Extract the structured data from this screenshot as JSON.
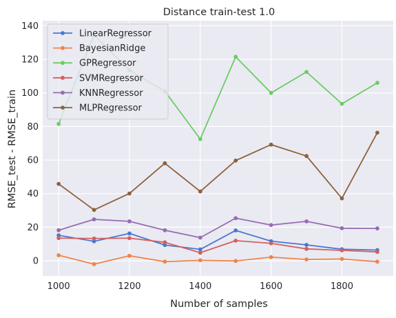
{
  "chart_data": {
    "type": "line",
    "title": "Distance train-test 1.0",
    "xlabel": "Number of samples",
    "ylabel": "RMSE_test - RMSE_train",
    "x": [
      1000,
      1100,
      1200,
      1300,
      1400,
      1500,
      1600,
      1700,
      1800,
      1900
    ],
    "xlim": [
      955,
      1945
    ],
    "ylim": [
      -9,
      143
    ],
    "xticks": [
      1000,
      1200,
      1400,
      1600,
      1800
    ],
    "yticks": [
      0,
      20,
      40,
      60,
      80,
      100,
      120,
      140
    ],
    "grid": true,
    "legend_position": "upper-left",
    "background": "#eaeaf2",
    "series": [
      {
        "name": "LinearRegressor",
        "color": "#4878d0",
        "values": [
          15.2,
          11.6,
          16.3,
          9.4,
          6.8,
          18.1,
          11.7,
          9.5,
          6.9,
          6.4
        ]
      },
      {
        "name": "BayesianRidge",
        "color": "#ee854a",
        "values": [
          3.3,
          -2.0,
          3.0,
          -0.5,
          0.3,
          -0.1,
          2.2,
          0.8,
          1.1,
          -0.5
        ]
      },
      {
        "name": "GPRegressor",
        "color": "#6acc64",
        "values": [
          81.5,
          134.5,
          113.5,
          101.0,
          72.5,
          121.5,
          100.0,
          112.5,
          93.5,
          106.0
        ]
      },
      {
        "name": "SVMRegressor",
        "color": "#d65f5f",
        "values": [
          13.5,
          13.3,
          13.5,
          11.0,
          4.8,
          12.0,
          10.4,
          7.1,
          6.2,
          5.3
        ]
      },
      {
        "name": "KNNRegressor",
        "color": "#956cb4",
        "values": [
          18.2,
          24.7,
          23.5,
          18.2,
          13.8,
          25.4,
          21.3,
          23.5,
          19.4,
          19.3
        ]
      },
      {
        "name": "MLPRegressor",
        "color": "#8c613c",
        "values": [
          45.8,
          30.3,
          40.1,
          58.1,
          41.3,
          59.7,
          69.2,
          62.4,
          37.2,
          76.3
        ]
      }
    ]
  }
}
